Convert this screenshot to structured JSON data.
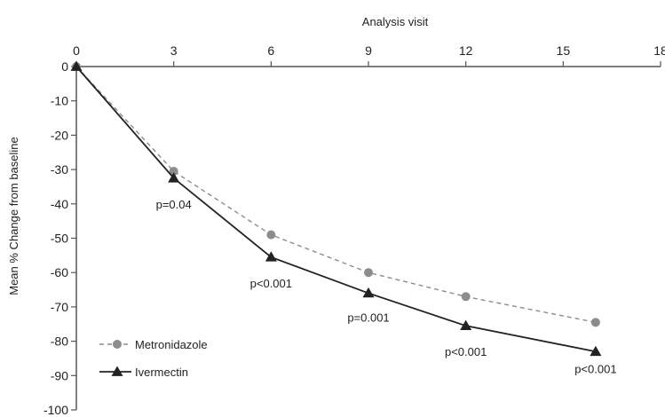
{
  "chart_data": {
    "type": "line",
    "title": "",
    "xlabel": "Analysis visit",
    "ylabel": "Mean % Change from baseline",
    "x_axis_position": "top",
    "xlim": [
      0,
      18
    ],
    "ylim": [
      -100,
      0
    ],
    "xticks": [
      0,
      3,
      6,
      9,
      12,
      15,
      18
    ],
    "yticks": [
      0,
      -10,
      -20,
      -30,
      -40,
      -50,
      -60,
      -70,
      -80,
      -90,
      -100
    ],
    "grid": false,
    "legend_position": "bottom-left",
    "series": [
      {
        "name": "Metronidazole",
        "style": "dashed",
        "marker": "circle",
        "color": "#8c8c8c",
        "x": [
          0,
          3,
          6,
          9,
          12,
          16
        ],
        "y": [
          0,
          -30.5,
          -49,
          -60,
          -67,
          -74.5
        ]
      },
      {
        "name": "Ivermectin",
        "style": "solid",
        "marker": "triangle",
        "color": "#222222",
        "x": [
          0,
          3,
          6,
          9,
          12,
          16
        ],
        "y": [
          0,
          -32.5,
          -55.5,
          -66,
          -75.5,
          -83
        ]
      }
    ],
    "annotations": [
      {
        "text": "p=0.04",
        "x": 3,
        "y": -40
      },
      {
        "text": "p<0.001",
        "x": 6,
        "y": -63
      },
      {
        "text": "p=0.001",
        "x": 9,
        "y": -73
      },
      {
        "text": "p<0.001",
        "x": 12,
        "y": -83
      },
      {
        "text": "p<0.001",
        "x": 16,
        "y": -88
      }
    ]
  }
}
